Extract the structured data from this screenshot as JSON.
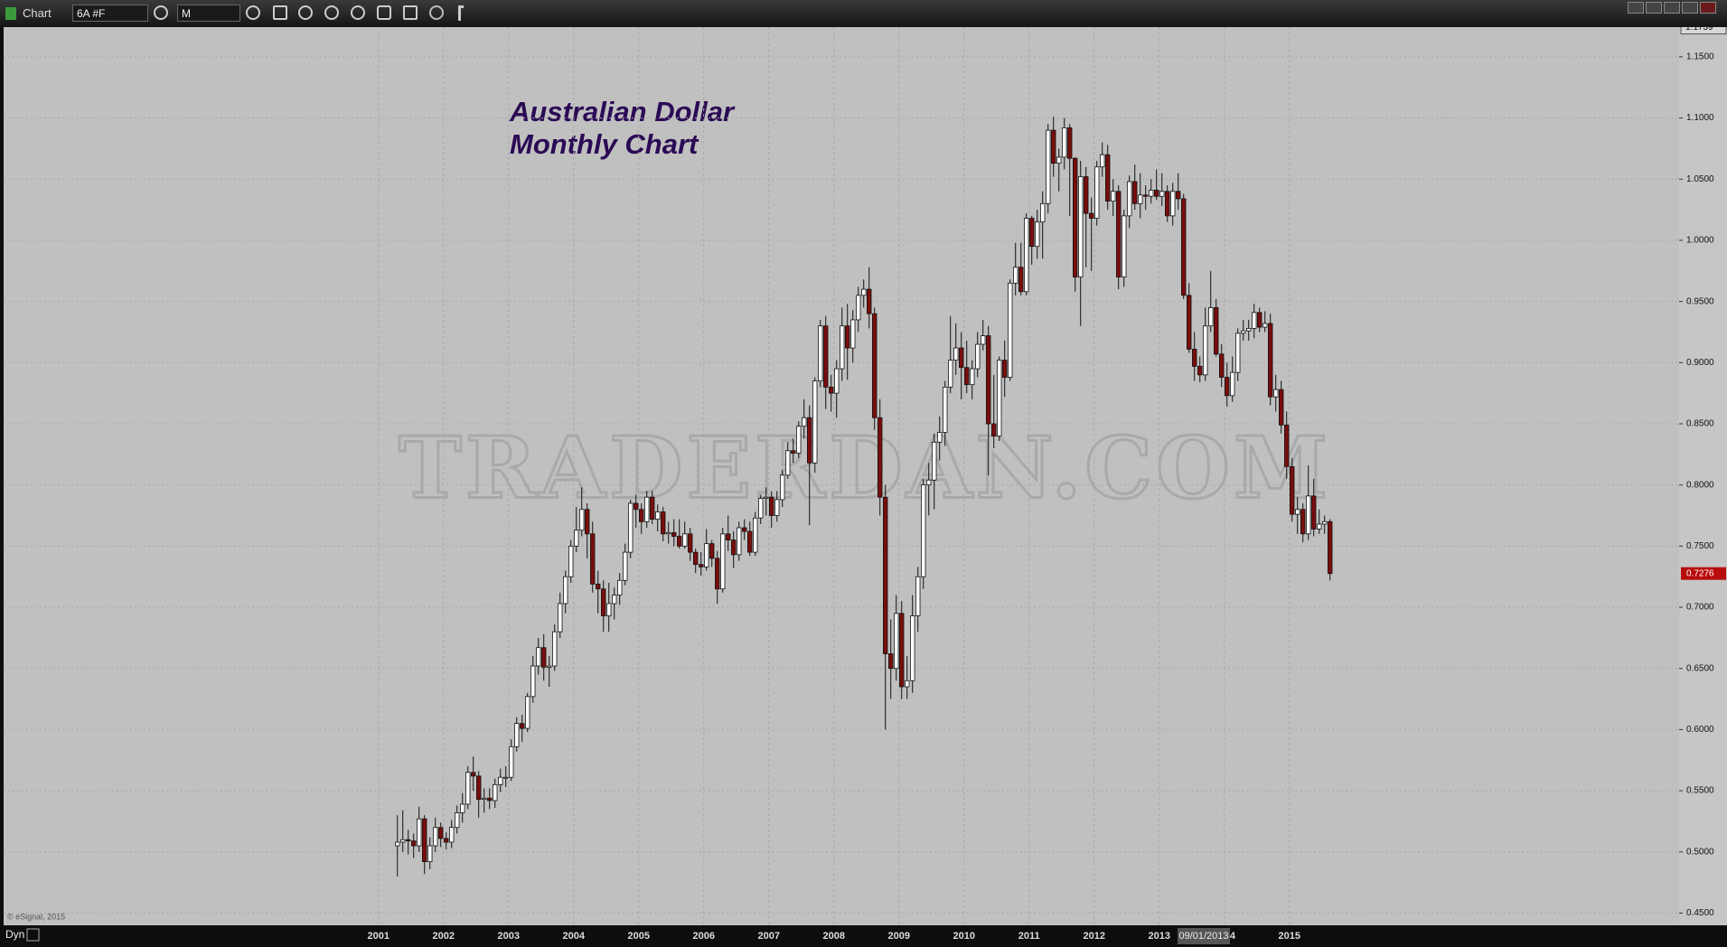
{
  "toolbar": {
    "window_title": "Chart",
    "symbol": "6A #F",
    "interval": "M",
    "bottom_mode": "Dyn",
    "copyright": "© eSignal, 2015",
    "cursor_date": "09/01/2013"
  },
  "watermark": "TRADERDAN.COM",
  "chart_data": {
    "type": "candlestick",
    "title": "Australian Dollar",
    "subtitle": "Monthly Chart",
    "up_color": "#ffffff",
    "down_color": "#7a0d0d",
    "grid": true,
    "top_price_label": {
      "value": 1.1739,
      "label": "1.1739"
    },
    "last_price_label": "0.7276",
    "xlim": [
      1995.24,
      2020.99
    ],
    "xticks": [
      2001,
      2002,
      2003,
      2004,
      2005,
      2006,
      2007,
      2008,
      2009,
      2010,
      2011,
      2012,
      2013,
      2014,
      2015
    ],
    "ylim": [
      0.44,
      1.1743
    ],
    "yticks": [
      {
        "value": 0.45,
        "label": "0.4500"
      },
      {
        "value": 0.5,
        "label": "0.5000"
      },
      {
        "value": 0.55,
        "label": "0.5500"
      },
      {
        "value": 0.6,
        "label": "0.6000"
      },
      {
        "value": 0.65,
        "label": "0.6500"
      },
      {
        "value": 0.7,
        "label": "0.7000"
      },
      {
        "value": 0.75,
        "label": "0.7500"
      },
      {
        "value": 0.8,
        "label": "0.8000"
      },
      {
        "value": 0.85,
        "label": "0.8500"
      },
      {
        "value": 0.9,
        "label": "0.9000"
      },
      {
        "value": 0.95,
        "label": "0.9500"
      },
      {
        "value": 1.0,
        "label": "1.0000"
      },
      {
        "value": 1.05,
        "label": "1.0500"
      },
      {
        "value": 1.1,
        "label": "1.1000"
      },
      {
        "value": 1.15,
        "label": "1.1500"
      }
    ],
    "series": [
      {
        "name": "6A #F",
        "open": [
          0.505,
          0.508,
          0.51,
          0.509,
          0.505,
          0.527,
          0.492,
          0.505,
          0.52,
          0.511,
          0.508,
          0.52,
          0.532,
          0.539,
          0.565,
          0.562,
          0.543,
          0.544,
          0.542,
          0.555,
          0.561,
          0.561,
          0.586,
          0.605,
          0.601,
          0.627,
          0.652,
          0.667,
          0.651,
          0.652,
          0.68,
          0.703,
          0.725,
          0.75,
          0.763,
          0.78,
          0.76,
          0.719,
          0.715,
          0.693,
          0.703,
          0.71,
          0.722,
          0.745,
          0.785,
          0.78,
          0.77,
          0.79,
          0.772,
          0.778,
          0.76,
          0.761,
          0.758,
          0.75,
          0.76,
          0.745,
          0.735,
          0.733,
          0.752,
          0.74,
          0.715,
          0.76,
          0.755,
          0.743,
          0.765,
          0.762,
          0.745,
          0.773,
          0.789,
          0.79,
          0.775,
          0.788,
          0.808,
          0.828,
          0.826,
          0.848,
          0.855,
          0.818,
          0.885,
          0.93,
          0.88,
          0.875,
          0.895,
          0.93,
          0.912,
          0.935,
          0.955,
          0.96,
          0.94,
          0.855,
          0.79,
          0.662,
          0.65,
          0.695,
          0.635,
          0.64,
          0.693,
          0.725,
          0.8,
          0.804,
          0.835,
          0.843,
          0.88,
          0.902,
          0.912,
          0.896,
          0.882,
          0.895,
          0.915,
          0.922,
          0.85,
          0.84,
          0.902,
          0.888,
          0.965,
          0.978,
          0.958,
          1.018,
          0.995,
          1.015,
          1.03,
          1.09,
          1.063,
          1.068,
          1.092,
          1.067,
          0.97,
          1.052,
          1.022,
          1.018,
          1.06,
          1.07,
          1.032,
          1.04,
          0.97,
          1.02,
          1.048,
          1.03,
          1.037,
          1.036,
          1.041,
          1.036,
          1.04,
          1.02,
          1.04,
          1.034,
          0.955,
          0.911,
          0.897,
          0.89,
          0.93,
          0.945,
          0.907,
          0.888,
          0.873,
          0.892,
          0.924,
          0.926,
          0.928,
          0.941,
          0.929,
          0.932,
          0.872,
          0.878,
          0.849,
          0.815,
          0.776,
          0.78,
          0.76,
          0.791,
          0.764,
          0.768,
          0.77
        ],
        "high": [
          0.53,
          0.534,
          0.518,
          0.515,
          0.537,
          0.53,
          0.512,
          0.528,
          0.524,
          0.516,
          0.526,
          0.538,
          0.548,
          0.57,
          0.578,
          0.566,
          0.552,
          0.552,
          0.56,
          0.568,
          0.57,
          0.592,
          0.61,
          0.612,
          0.63,
          0.66,
          0.675,
          0.678,
          0.66,
          0.686,
          0.712,
          0.73,
          0.755,
          0.782,
          0.798,
          0.785,
          0.77,
          0.73,
          0.722,
          0.72,
          0.716,
          0.728,
          0.752,
          0.788,
          0.792,
          0.785,
          0.795,
          0.795,
          0.784,
          0.782,
          0.77,
          0.772,
          0.772,
          0.77,
          0.765,
          0.748,
          0.745,
          0.764,
          0.755,
          0.746,
          0.765,
          0.775,
          0.762,
          0.77,
          0.772,
          0.77,
          0.778,
          0.792,
          0.798,
          0.795,
          0.795,
          0.812,
          0.835,
          0.838,
          0.852,
          0.87,
          0.865,
          0.888,
          0.935,
          0.938,
          0.89,
          0.902,
          0.945,
          0.948,
          0.943,
          0.962,
          0.968,
          0.978,
          0.945,
          0.87,
          0.8,
          0.69,
          0.71,
          0.705,
          0.66,
          0.71,
          0.733,
          0.805,
          0.818,
          0.842,
          0.856,
          0.885,
          0.938,
          0.932,
          0.925,
          0.918,
          0.902,
          0.925,
          0.935,
          0.93,
          0.89,
          0.905,
          0.918,
          0.968,
          0.998,
          0.998,
          1.022,
          1.02,
          1.025,
          1.04,
          1.095,
          1.101,
          1.075,
          1.1,
          1.095,
          1.068,
          1.065,
          1.06,
          1.035,
          1.065,
          1.08,
          1.078,
          1.05,
          1.045,
          1.025,
          1.053,
          1.062,
          1.055,
          1.045,
          1.05,
          1.058,
          1.055,
          1.045,
          1.047,
          1.055,
          1.038,
          0.965,
          0.925,
          0.905,
          0.945,
          0.975,
          0.952,
          0.915,
          0.9,
          0.905,
          0.928,
          0.935,
          0.935,
          0.948,
          0.945,
          0.942,
          0.94,
          0.89,
          0.885,
          0.86,
          0.822,
          0.79,
          0.785,
          0.816,
          0.805,
          0.78,
          0.775,
          0.772
        ],
        "low": [
          0.48,
          0.5,
          0.498,
          0.495,
          0.5,
          0.482,
          0.486,
          0.5,
          0.504,
          0.502,
          0.503,
          0.515,
          0.524,
          0.535,
          0.55,
          0.528,
          0.532,
          0.535,
          0.536,
          0.549,
          0.553,
          0.558,
          0.582,
          0.59,
          0.598,
          0.622,
          0.645,
          0.64,
          0.635,
          0.648,
          0.675,
          0.695,
          0.72,
          0.745,
          0.758,
          0.74,
          0.712,
          0.695,
          0.68,
          0.68,
          0.69,
          0.702,
          0.718,
          0.74,
          0.765,
          0.76,
          0.765,
          0.768,
          0.762,
          0.754,
          0.752,
          0.75,
          0.748,
          0.748,
          0.738,
          0.728,
          0.726,
          0.73,
          0.733,
          0.703,
          0.712,
          0.746,
          0.732,
          0.738,
          0.755,
          0.742,
          0.742,
          0.768,
          0.775,
          0.765,
          0.77,
          0.782,
          0.805,
          0.818,
          0.822,
          0.838,
          0.767,
          0.81,
          0.88,
          0.862,
          0.86,
          0.855,
          0.885,
          0.886,
          0.9,
          0.925,
          0.945,
          0.928,
          0.845,
          0.775,
          0.6,
          0.625,
          0.64,
          0.625,
          0.625,
          0.63,
          0.68,
          0.715,
          0.775,
          0.78,
          0.82,
          0.832,
          0.875,
          0.89,
          0.87,
          0.875,
          0.87,
          0.888,
          0.91,
          0.808,
          0.83,
          0.836,
          0.872,
          0.885,
          0.955,
          0.955,
          0.955,
          0.98,
          0.985,
          0.985,
          1.022,
          1.052,
          1.04,
          1.058,
          1.02,
          0.958,
          0.93,
          0.978,
          0.975,
          1.012,
          1.052,
          1.025,
          1.02,
          0.96,
          0.962,
          1.01,
          1.025,
          1.018,
          1.025,
          1.03,
          1.033,
          1.028,
          1.015,
          1.012,
          1.025,
          0.952,
          0.908,
          0.885,
          0.884,
          0.885,
          0.925,
          0.905,
          0.88,
          0.864,
          0.868,
          0.885,
          0.918,
          0.918,
          0.92,
          0.925,
          0.925,
          0.865,
          0.86,
          0.842,
          0.805,
          0.77,
          0.76,
          0.753,
          0.755,
          0.758,
          0.76,
          0.76,
          0.722
        ],
        "close": [
          0.508,
          0.51,
          0.509,
          0.505,
          0.527,
          0.492,
          0.505,
          0.52,
          0.511,
          0.508,
          0.52,
          0.532,
          0.539,
          0.565,
          0.562,
          0.543,
          0.544,
          0.542,
          0.555,
          0.561,
          0.561,
          0.586,
          0.605,
          0.601,
          0.627,
          0.652,
          0.667,
          0.651,
          0.652,
          0.68,
          0.703,
          0.725,
          0.75,
          0.763,
          0.78,
          0.76,
          0.719,
          0.715,
          0.693,
          0.703,
          0.71,
          0.722,
          0.745,
          0.785,
          0.78,
          0.77,
          0.79,
          0.772,
          0.778,
          0.76,
          0.761,
          0.758,
          0.75,
          0.76,
          0.745,
          0.735,
          0.733,
          0.752,
          0.74,
          0.715,
          0.76,
          0.755,
          0.743,
          0.765,
          0.762,
          0.745,
          0.773,
          0.789,
          0.79,
          0.775,
          0.788,
          0.808,
          0.828,
          0.826,
          0.848,
          0.855,
          0.818,
          0.885,
          0.93,
          0.88,
          0.875,
          0.895,
          0.93,
          0.912,
          0.935,
          0.955,
          0.96,
          0.94,
          0.855,
          0.79,
          0.662,
          0.65,
          0.695,
          0.635,
          0.64,
          0.693,
          0.725,
          0.8,
          0.804,
          0.835,
          0.843,
          0.88,
          0.902,
          0.912,
          0.896,
          0.882,
          0.895,
          0.915,
          0.922,
          0.85,
          0.84,
          0.902,
          0.888,
          0.965,
          0.978,
          0.958,
          1.018,
          0.995,
          1.015,
          1.03,
          1.09,
          1.063,
          1.068,
          1.092,
          1.067,
          0.97,
          1.052,
          1.022,
          1.018,
          1.06,
          1.07,
          1.032,
          1.04,
          0.97,
          1.02,
          1.048,
          1.03,
          1.037,
          1.036,
          1.041,
          1.036,
          1.04,
          1.02,
          1.04,
          1.034,
          0.955,
          0.911,
          0.897,
          0.89,
          0.93,
          0.945,
          0.907,
          0.888,
          0.873,
          0.892,
          0.924,
          0.926,
          0.928,
          0.941,
          0.929,
          0.932,
          0.872,
          0.878,
          0.849,
          0.815,
          0.776,
          0.78,
          0.76,
          0.791,
          0.764,
          0.768,
          0.77,
          0.7276
        ]
      }
    ]
  }
}
